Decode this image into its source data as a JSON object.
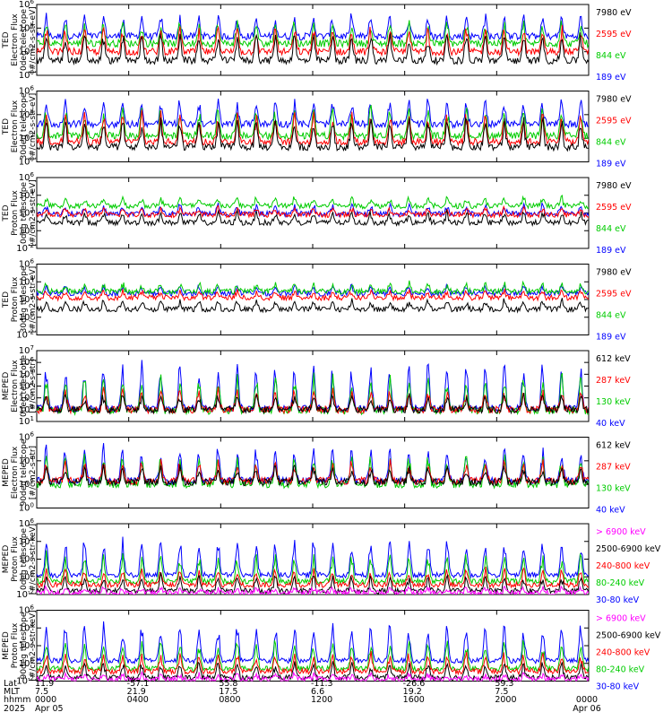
{
  "chart_data": [
    {
      "type": "line",
      "instrument": "TED",
      "ylabel": [
        "TED",
        "Electron Flux",
        "0deg telescope",
        "[#/cm2-s-str-eV]"
      ],
      "yticks": [
        {
          "exp": "0"
        },
        {
          "exp": "2"
        },
        {
          "exp": "4"
        },
        {
          "exp": "6"
        }
      ],
      "ylim_exp": [
        0,
        6
      ],
      "base_exp": 1.4,
      "series": [
        {
          "name": "7980 eV",
          "color": "#000000",
          "level": 1.25,
          "peak": 3.8
        },
        {
          "name": "2595 eV",
          "color": "#ff0000",
          "level": 2.0,
          "peak": 4.2
        },
        {
          "name": "844 eV",
          "color": "#00cc00",
          "level": 2.7,
          "peak": 4.6
        },
        {
          "name": "189 eV",
          "color": "#0000ff",
          "level": 3.3,
          "peak": 5.2
        }
      ]
    },
    {
      "type": "line",
      "instrument": "TED",
      "ylabel": [
        "TED",
        "Electron Flux",
        "30deg telescope",
        "[#/cm2-s-str-eV]"
      ],
      "yticks": [
        {
          "exp": "0"
        },
        {
          "exp": "2"
        },
        {
          "exp": "4"
        },
        {
          "exp": "6"
        }
      ],
      "ylim_exp": [
        0,
        6
      ],
      "series": [
        {
          "name": "7980 eV",
          "color": "#000000",
          "level": 1.25,
          "peak": 3.8
        },
        {
          "name": "2595 eV",
          "color": "#ff0000",
          "level": 1.7,
          "peak": 4.3
        },
        {
          "name": "844 eV",
          "color": "#00cc00",
          "level": 2.2,
          "peak": 4.7
        },
        {
          "name": "189 eV",
          "color": "#0000ff",
          "level": 3.2,
          "peak": 5.4
        }
      ]
    },
    {
      "type": "line",
      "instrument": "TED",
      "ylabel": [
        "TED",
        "Proton Flux",
        "0deg telescope",
        "[#/cm2-s-str-eV]"
      ],
      "yticks": [
        {
          "exp": "-2"
        },
        {
          "exp": "0"
        },
        {
          "exp": "2"
        },
        {
          "exp": "4"
        },
        {
          "exp": "6"
        }
      ],
      "ylim_exp": [
        -2,
        6
      ],
      "series": [
        {
          "name": "7980 eV",
          "color": "#000000",
          "level": 0.9,
          "peak": 2.2
        },
        {
          "name": "2595 eV",
          "color": "#ff0000",
          "level": 1.8,
          "peak": 2.6
        },
        {
          "name": "844 eV",
          "color": "#00cc00",
          "level": 2.8,
          "peak": 3.8
        },
        {
          "name": "189 eV",
          "color": "#0000ff",
          "level": 1.9,
          "peak": 3.0
        }
      ]
    },
    {
      "type": "line",
      "instrument": "TED",
      "ylabel": [
        "TED",
        "Proton Flux",
        "30deg telescope",
        "[#/cm2-s-str-eV]"
      ],
      "yticks": [
        {
          "exp": "-2"
        },
        {
          "exp": "0"
        },
        {
          "exp": "2"
        },
        {
          "exp": "4"
        },
        {
          "exp": "6"
        }
      ],
      "ylim_exp": [
        -2,
        6
      ],
      "series": [
        {
          "name": "7980 eV",
          "color": "#000000",
          "level": 0.9,
          "peak": 2.0
        },
        {
          "name": "2595 eV",
          "color": "#ff0000",
          "level": 2.2,
          "peak": 3.0
        },
        {
          "name": "844 eV",
          "color": "#00cc00",
          "level": 2.9,
          "peak": 3.9
        },
        {
          "name": "189 eV",
          "color": "#0000ff",
          "level": 2.7,
          "peak": 3.5
        }
      ]
    },
    {
      "type": "line",
      "instrument": "MEPED",
      "ylabel": [
        "MEPED",
        "Electron Flux",
        "0deg telescope",
        "[#/cm2-s-str]"
      ],
      "yticks": [
        {
          "exp": "1"
        },
        {
          "exp": "2"
        },
        {
          "exp": "3"
        },
        {
          "exp": "4"
        },
        {
          "exp": "5"
        },
        {
          "exp": "6"
        },
        {
          "exp": "7"
        }
      ],
      "ylim_exp": [
        1,
        7
      ],
      "series": [
        {
          "name": "612 keV",
          "color": "#000000",
          "level": 2.0,
          "peak": 3.3
        },
        {
          "name": "287 keV",
          "color": "#ff0000",
          "level": 2.0,
          "peak": 3.8
        },
        {
          "name": "130 keV",
          "color": "#00cc00",
          "level": 1.9,
          "peak": 5.0
        },
        {
          "name": "40 keV",
          "color": "#0000ff",
          "level": 2.1,
          "peak": 6.2
        }
      ]
    },
    {
      "type": "line",
      "instrument": "MEPED",
      "ylabel": [
        "MEPED",
        "Electron Flux",
        "90deg telescope",
        "[#/cm2-s-str]"
      ],
      "yticks": [
        {
          "exp": "0"
        },
        {
          "exp": "2"
        },
        {
          "exp": "4"
        },
        {
          "exp": "6"
        }
      ],
      "ylim_exp": [
        0,
        6
      ],
      "series": [
        {
          "name": "612 keV",
          "color": "#000000",
          "level": 2.2,
          "peak": 3.5
        },
        {
          "name": "287 keV",
          "color": "#ff0000",
          "level": 2.3,
          "peak": 4.0
        },
        {
          "name": "130 keV",
          "color": "#00cc00",
          "level": 2.0,
          "peak": 4.6
        },
        {
          "name": "40 keV",
          "color": "#0000ff",
          "level": 2.3,
          "peak": 5.4
        }
      ]
    },
    {
      "type": "line",
      "instrument": "MEPED",
      "ylabel": [
        "MEPED",
        "Proton Flux",
        "0deg telescope",
        "[#/cm2-s-str-keV]"
      ],
      "yticks": [
        {
          "exp": "-2"
        },
        {
          "exp": "0"
        },
        {
          "exp": "2"
        },
        {
          "exp": "4"
        },
        {
          "exp": "6"
        }
      ],
      "ylim_exp": [
        -2,
        6
      ],
      "series": [
        {
          "name": "> 6900 keV",
          "color": "#ff00ff",
          "level": -1.8,
          "peak": -1.2
        },
        {
          "name": "2500-6900 keV",
          "color": "#000000",
          "level": -1.6,
          "peak": 0.2
        },
        {
          "name": "240-800 keV",
          "color": "#ff0000",
          "level": -0.9,
          "peak": 1.0
        },
        {
          "name": "80-240 keV",
          "color": "#00cc00",
          "level": -0.5,
          "peak": 2.8
        },
        {
          "name": "30-80 keV",
          "color": "#0000ff",
          "level": 0.2,
          "peak": 4.6
        }
      ]
    },
    {
      "type": "line",
      "instrument": "MEPED",
      "ylabel": [
        "MEPED",
        "Proton Flux",
        "90deg telescope",
        "[#/cm2-s-str-keV]"
      ],
      "yticks": [
        {
          "exp": "-2"
        },
        {
          "exp": "0"
        },
        {
          "exp": "2"
        },
        {
          "exp": "4"
        },
        {
          "exp": "6"
        }
      ],
      "ylim_exp": [
        -2,
        6
      ],
      "series": [
        {
          "name": "> 6900 keV",
          "color": "#ff00ff",
          "level": -1.8,
          "peak": -1.2
        },
        {
          "name": "2500-6900 keV",
          "color": "#000000",
          "level": -1.6,
          "peak": 0.2
        },
        {
          "name": "240-800 keV",
          "color": "#ff0000",
          "level": -0.9,
          "peak": 1.2
        },
        {
          "name": "80-240 keV",
          "color": "#00cc00",
          "level": -0.6,
          "peak": 2.8
        },
        {
          "name": "30-80 keV",
          "color": "#0000ff",
          "level": 0.3,
          "peak": 4.8
        }
      ]
    }
  ],
  "x_axis": {
    "row_labels": [
      "Lat",
      "MLT",
      "hhmm",
      "2025"
    ],
    "ticks": [
      {
        "hours": 0,
        "lat": "11.9",
        "mlt": "7.5",
        "hhmm": "0000",
        "date": "Apr 05"
      },
      {
        "hours": 4,
        "lat": "-57.1",
        "mlt": "21.9",
        "hhmm": "0400",
        "date": ""
      },
      {
        "hours": 8,
        "lat": "55.8",
        "mlt": "17.5",
        "hhmm": "0800",
        "date": ""
      },
      {
        "hours": 12,
        "lat": "-11.3",
        "mlt": "6.6",
        "hhmm": "1200",
        "date": ""
      },
      {
        "hours": 16,
        "lat": "-26.6",
        "mlt": "19.2",
        "hhmm": "1600",
        "date": ""
      },
      {
        "hours": 20,
        "lat": "59.3",
        "mlt": "7.5",
        "hhmm": "2000",
        "date": ""
      },
      {
        "hours": 24,
        "lat": "",
        "mlt": "",
        "hhmm": "0000",
        "date": "Apr 06"
      }
    ],
    "xlim_hours": [
      0,
      24
    ],
    "pass_period_hours": 0.83
  }
}
